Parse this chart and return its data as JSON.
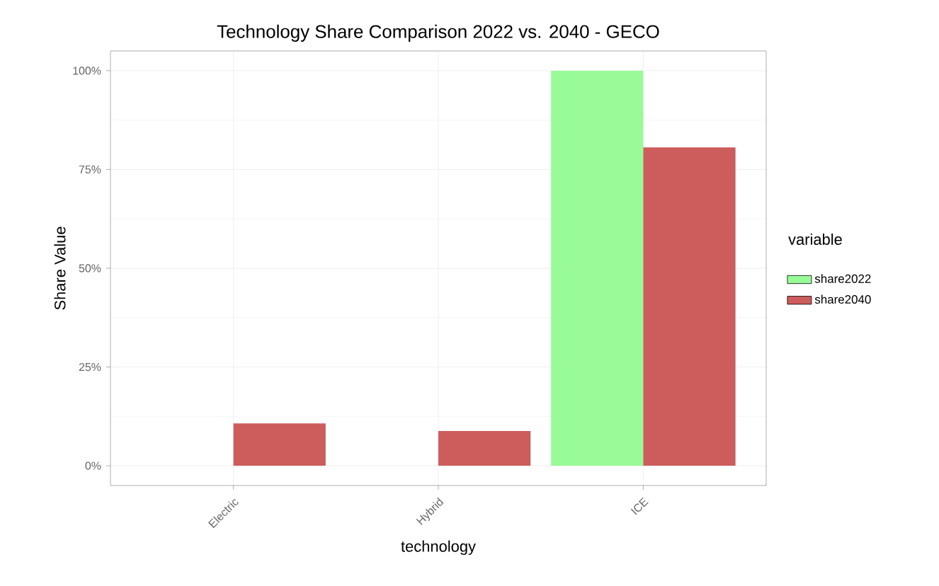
{
  "chart_data": {
    "type": "bar",
    "title": "Technology Share Comparison 2022 vs. 2040 - GECO",
    "xlabel": "technology",
    "ylabel": "Share Value",
    "legend_title": "variable",
    "categories": [
      "Electric",
      "Hybrid",
      "ICE"
    ],
    "series": [
      {
        "name": "share2022",
        "color": "#98fb98",
        "values": [
          0,
          0,
          1.0
        ]
      },
      {
        "name": "share2040",
        "color": "#cd5c5c",
        "values": [
          0.107,
          0.088,
          0.806
        ]
      }
    ],
    "ylim": [
      -0.05,
      1.05
    ],
    "yticks": [
      {
        "value": 0,
        "label": "0%"
      },
      {
        "value": 0.25,
        "label": "25%"
      },
      {
        "value": 0.5,
        "label": "50%"
      },
      {
        "value": 0.75,
        "label": "75%"
      },
      {
        "value": 1,
        "label": "100%"
      }
    ],
    "grid": true,
    "legend": "right"
  }
}
